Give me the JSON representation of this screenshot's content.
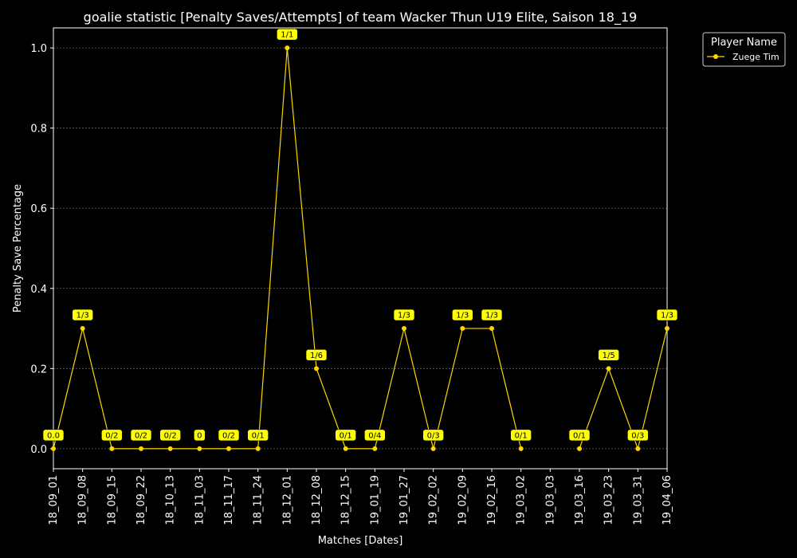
{
  "chart_data": {
    "type": "line",
    "title": "goalie statistic [Penalty Saves/Attempts] of team Wacker Thun U19 Elite, Saison 18_19",
    "xlabel": "Matches [Dates]",
    "ylabel": "Penalty Save Percentage",
    "categories": [
      "18_09_01",
      "18_09_08",
      "18_09_15",
      "18_09_22",
      "18_10_13",
      "18_11_03",
      "18_11_17",
      "18_11_24",
      "18_12_01",
      "18_12_08",
      "18_12_15",
      "19_01_19",
      "19_01_27",
      "19_02_02",
      "19_02_09",
      "19_02_16",
      "19_03_02",
      "19_03_03",
      "19_03_16",
      "19_03_23",
      "19_03_31",
      "19_04_06"
    ],
    "ylim": [
      -0.05,
      1.05
    ],
    "yticks": [
      "0.0",
      "0.2",
      "0.4",
      "0.6",
      "0.8",
      "1.0"
    ],
    "grid": true,
    "legend": {
      "title": "Player Name",
      "placement": "outside-top-right"
    },
    "series": [
      {
        "name": "Zuege Tim",
        "color": "#ffd700",
        "values": [
          0.0,
          0.3,
          0.0,
          0.0,
          0.0,
          0.0,
          0.0,
          0.0,
          1.0,
          0.2,
          0.0,
          0.0,
          0.3,
          0.0,
          0.3,
          0.3,
          0.0,
          null,
          0.0,
          0.2,
          0.0,
          0.3
        ],
        "labels": [
          "0.0",
          "1/3",
          "0/2",
          "0/2",
          "0/2",
          "0",
          "0/2",
          "0/1",
          "1/1",
          "1/6",
          "0/1",
          "0/4",
          "1/3",
          "0/3",
          "1/3",
          "1/3",
          "0/1",
          null,
          "0/1",
          "1/5",
          "0/3",
          "1/3"
        ]
      }
    ]
  }
}
